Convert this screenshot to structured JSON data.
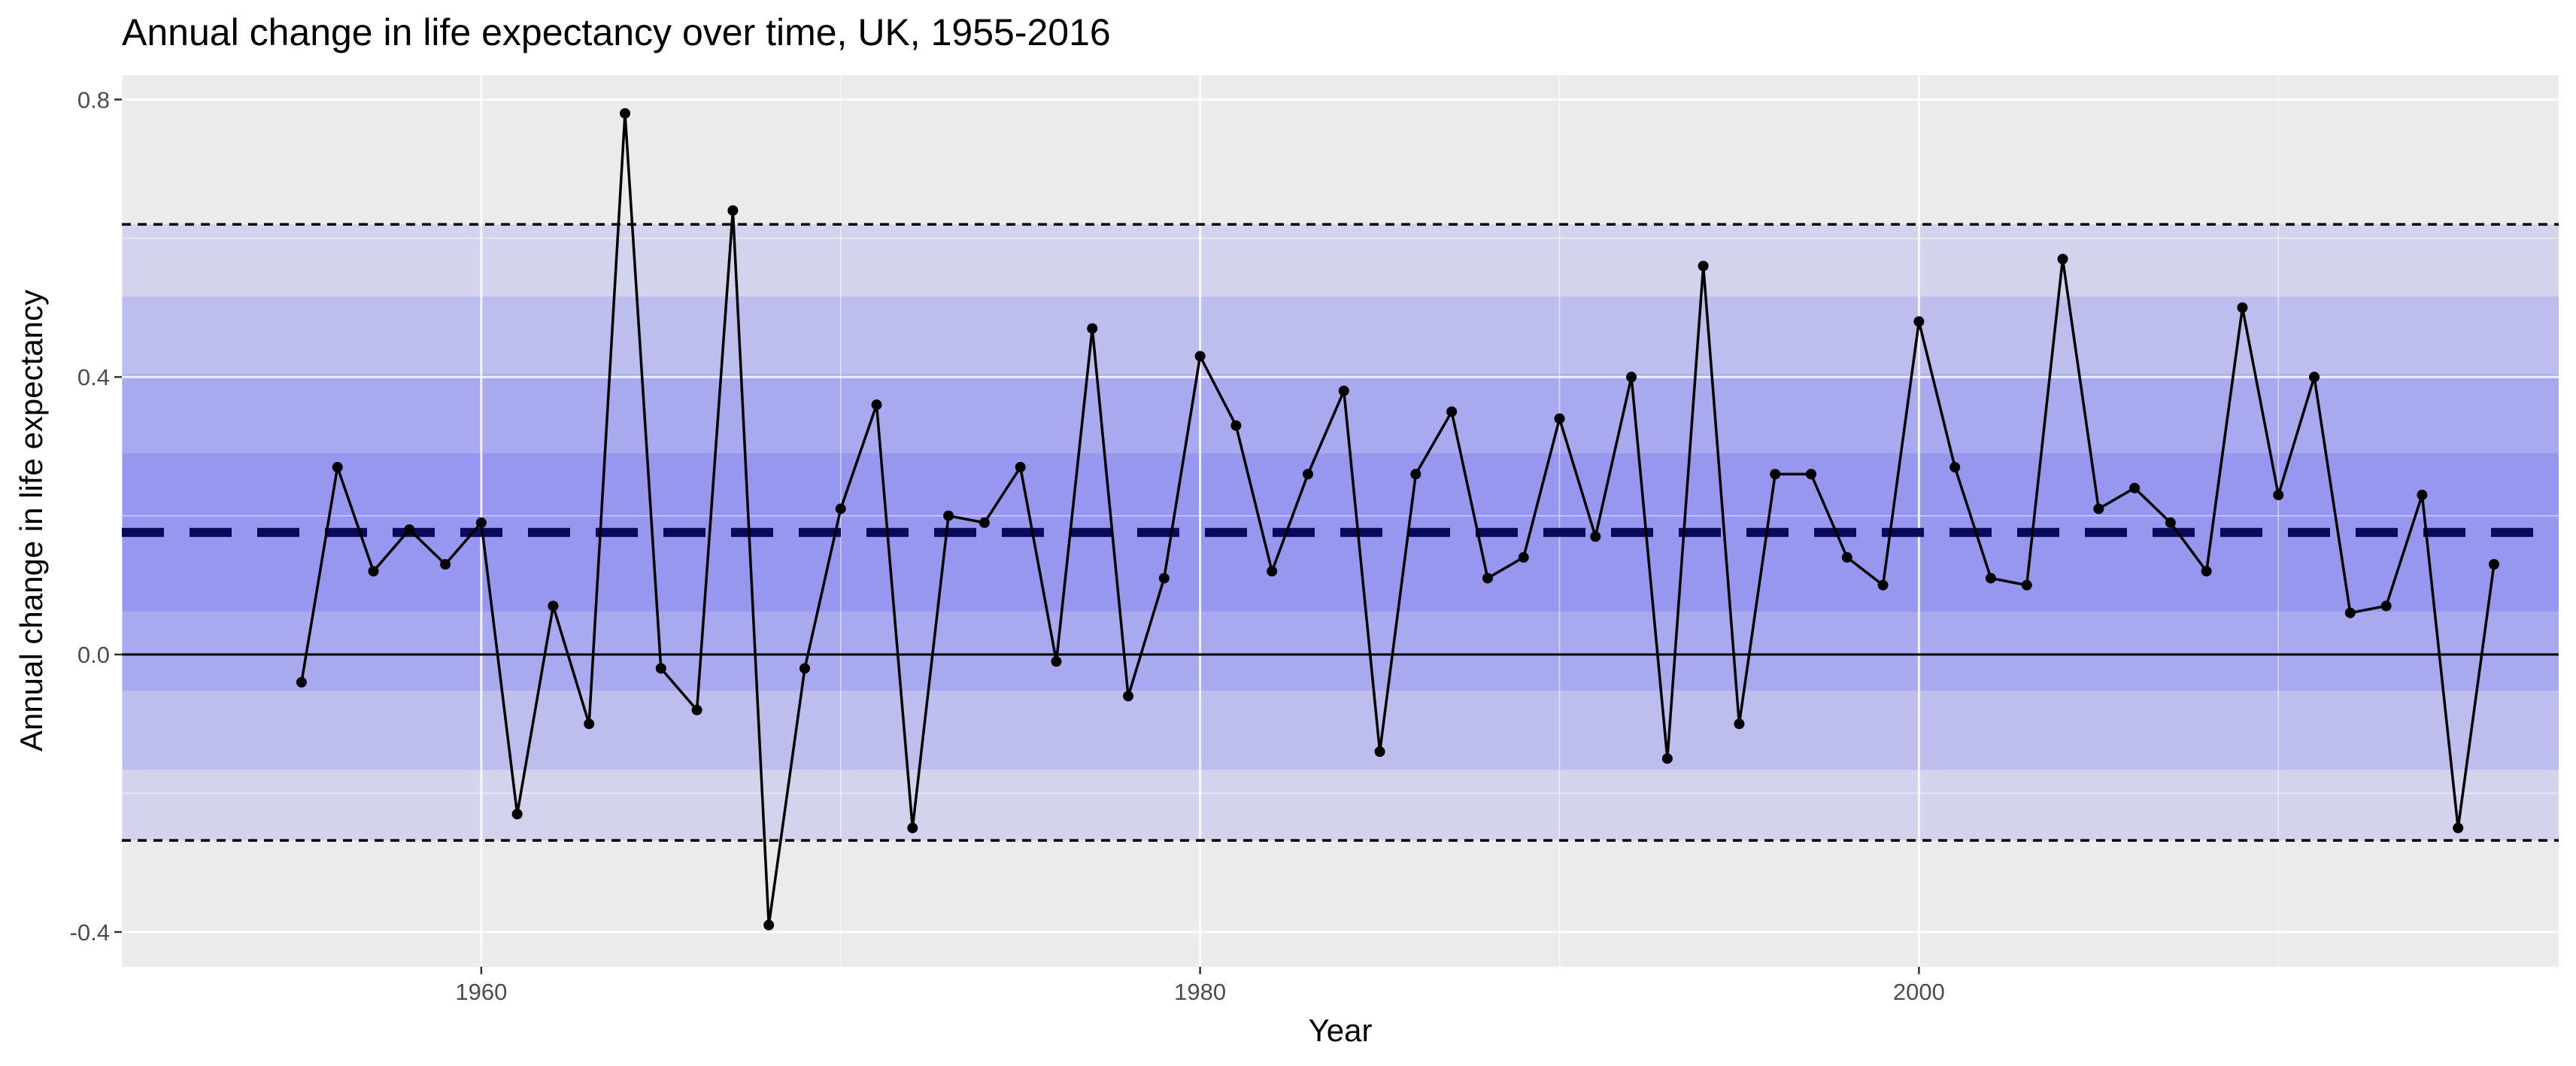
{
  "chart_data": {
    "type": "line",
    "title": "Annual change in life expectancy over time, UK, 1955-2016",
    "xlabel": "Year",
    "ylabel": "Annual change in life expectancy",
    "xlim": [
      1950,
      2017.8
    ],
    "ylim": [
      -0.45,
      0.835
    ],
    "xticks": [
      1960,
      1980,
      2000
    ],
    "yticks": [
      -0.4,
      0.0,
      0.4,
      0.8
    ],
    "ytick_labels": [
      "-0.4",
      "0.0",
      "0.4",
      "0.8"
    ],
    "grid": true,
    "mean_line": 0.176,
    "control_limits": [
      -0.268,
      0.62
    ],
    "sigma_bands": [
      {
        "from": 0.062,
        "to": 0.29
      },
      {
        "from": -0.052,
        "to": 0.404
      },
      {
        "from": -0.166,
        "to": 0.516
      },
      {
        "from": -0.268,
        "to": 0.62
      }
    ],
    "colors": {
      "panel": "#ebebeb",
      "band": "#0000ff",
      "mean_line": "#0a0a5a",
      "series": "#000000",
      "grid": "#ffffff"
    },
    "series": [
      {
        "x": [
          1955,
          1956,
          1957,
          1958,
          1959,
          1960,
          1961,
          1962,
          1963,
          1964,
          1965,
          1966,
          1967,
          1968,
          1969,
          1970,
          1971,
          1972,
          1973,
          1974,
          1975,
          1976,
          1977,
          1978,
          1979,
          1980,
          1981,
          1982,
          1983,
          1984,
          1985,
          1986,
          1987,
          1988,
          1989,
          1990,
          1991,
          1992,
          1993,
          1994,
          1995,
          1996,
          1997,
          1998,
          1999,
          2000,
          2001,
          2002,
          2003,
          2004,
          2005,
          2006,
          2007,
          2008,
          2009,
          2010,
          2011,
          2012,
          2013,
          2014,
          2015,
          2016
        ],
        "values": [
          -0.04,
          0.27,
          0.12,
          0.18,
          0.13,
          0.19,
          -0.23,
          0.07,
          -0.1,
          0.78,
          -0.02,
          -0.08,
          0.64,
          -0.39,
          -0.02,
          0.21,
          0.36,
          -0.25,
          0.2,
          0.19,
          0.27,
          -0.01,
          0.47,
          -0.06,
          0.11,
          0.43,
          0.33,
          0.12,
          0.26,
          0.38,
          -0.14,
          0.26,
          0.35,
          0.11,
          0.14,
          0.34,
          0.17,
          0.4,
          -0.15,
          0.56,
          -0.1,
          0.26,
          0.26,
          0.14,
          0.1,
          0.48,
          0.27,
          0.11,
          0.1,
          0.57,
          0.21,
          0.24,
          0.19,
          0.12,
          0.5,
          0.23,
          0.4,
          0.06,
          0.07,
          0.23,
          -0.25,
          0.13
        ]
      }
    ]
  }
}
